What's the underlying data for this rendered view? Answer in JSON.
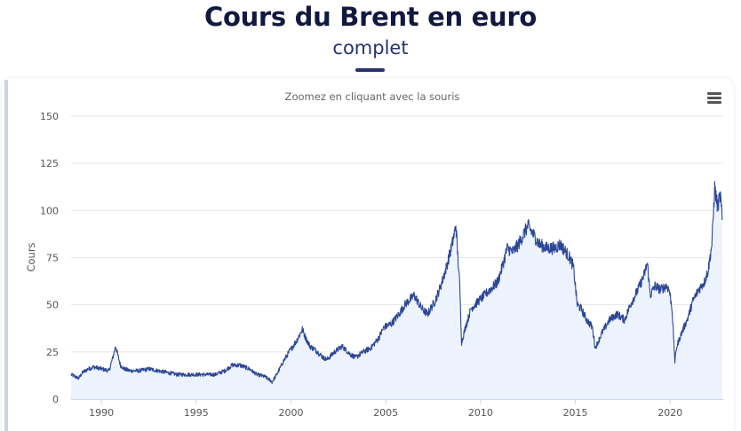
{
  "header": {
    "title": "Cours du Brent en euro",
    "subtitle": "complet"
  },
  "toolbar": {
    "menu_icon": "hamburger-menu-icon"
  },
  "colors": {
    "line": "#2c4696",
    "area": "#edf3fd",
    "title": "#12193f",
    "subtitle": "#24336f",
    "grid": "#e6e6e6",
    "axis_text": "#555555"
  },
  "chart_data": {
    "type": "area",
    "subtitle": "Zoomez en cliquant avec la souris",
    "xlabel": "",
    "ylabel": "Cours",
    "xlim": [
      1988.4,
      2022.8
    ],
    "ylim": [
      0,
      150
    ],
    "x_ticks": [
      "1990",
      "1995",
      "2000",
      "2005",
      "2010",
      "2015",
      "2020"
    ],
    "y_ticks": [
      "0",
      "25",
      "50",
      "75",
      "100",
      "125",
      "150"
    ],
    "grid": true,
    "legend": "none",
    "series": [
      {
        "x": [
          1988.4,
          1988.6,
          1988.8,
          1989.0,
          1989.3,
          1989.6,
          1990.0,
          1990.4,
          1990.6,
          1990.75,
          1990.85,
          1991.0,
          1991.2,
          1991.5,
          1992.0,
          1992.5,
          1993.0,
          1993.5,
          1994.0,
          1994.5,
          1995.0,
          1995.5,
          1996.0,
          1996.5,
          1996.9,
          1997.3,
          1997.8,
          1998.2,
          1998.6,
          1998.9,
          1999.0,
          1999.3,
          1999.6,
          1999.9,
          2000.3,
          2000.6,
          2000.75,
          2001.0,
          2001.3,
          2001.7,
          2001.9,
          2002.3,
          2002.7,
          2003.1,
          2003.4,
          2003.8,
          2004.2,
          2004.6,
          2004.9,
          2005.3,
          2005.7,
          2006.0,
          2006.5,
          2006.9,
          2007.2,
          2007.6,
          2007.9,
          2008.2,
          2008.5,
          2008.7,
          2008.9,
          2009.0,
          2009.2,
          2009.5,
          2009.9,
          2010.2,
          2010.5,
          2010.9,
          2011.2,
          2011.4,
          2011.7,
          2012.0,
          2012.3,
          2012.5,
          2012.8,
          2013.1,
          2013.5,
          2013.9,
          2014.2,
          2014.5,
          2014.7,
          2014.9,
          2015.1,
          2015.3,
          2015.6,
          2015.9,
          2016.05,
          2016.4,
          2016.8,
          2017.2,
          2017.6,
          2017.9,
          2018.3,
          2018.6,
          2018.8,
          2018.95,
          2019.2,
          2019.5,
          2019.8,
          2019.95,
          2020.1,
          2020.25,
          2020.35,
          2020.6,
          2020.9,
          2021.2,
          2021.5,
          2021.8,
          2022.0,
          2022.2,
          2022.35,
          2022.5,
          2022.65,
          2022.75
        ],
        "values": [
          13,
          12,
          11,
          14,
          16,
          17,
          16,
          15,
          22,
          28,
          24,
          18,
          16,
          15,
          15,
          16,
          15,
          14,
          13,
          13,
          13,
          13,
          13,
          15,
          18,
          18,
          16,
          13,
          12,
          10,
          9,
          14,
          20,
          25,
          31,
          37,
          33,
          28,
          26,
          22,
          21,
          25,
          28,
          24,
          22,
          25,
          27,
          32,
          38,
          40,
          45,
          50,
          55,
          48,
          45,
          52,
          60,
          70,
          82,
          92,
          60,
          30,
          38,
          48,
          52,
          55,
          58,
          62,
          72,
          80,
          78,
          82,
          88,
          92,
          87,
          82,
          80,
          80,
          82,
          78,
          75,
          70,
          50,
          48,
          42,
          38,
          27,
          35,
          42,
          45,
          42,
          50,
          58,
          65,
          72,
          55,
          60,
          58,
          60,
          58,
          48,
          20,
          28,
          35,
          42,
          52,
          58,
          62,
          68,
          82,
          112,
          102,
          108,
          95
        ]
      }
    ]
  }
}
